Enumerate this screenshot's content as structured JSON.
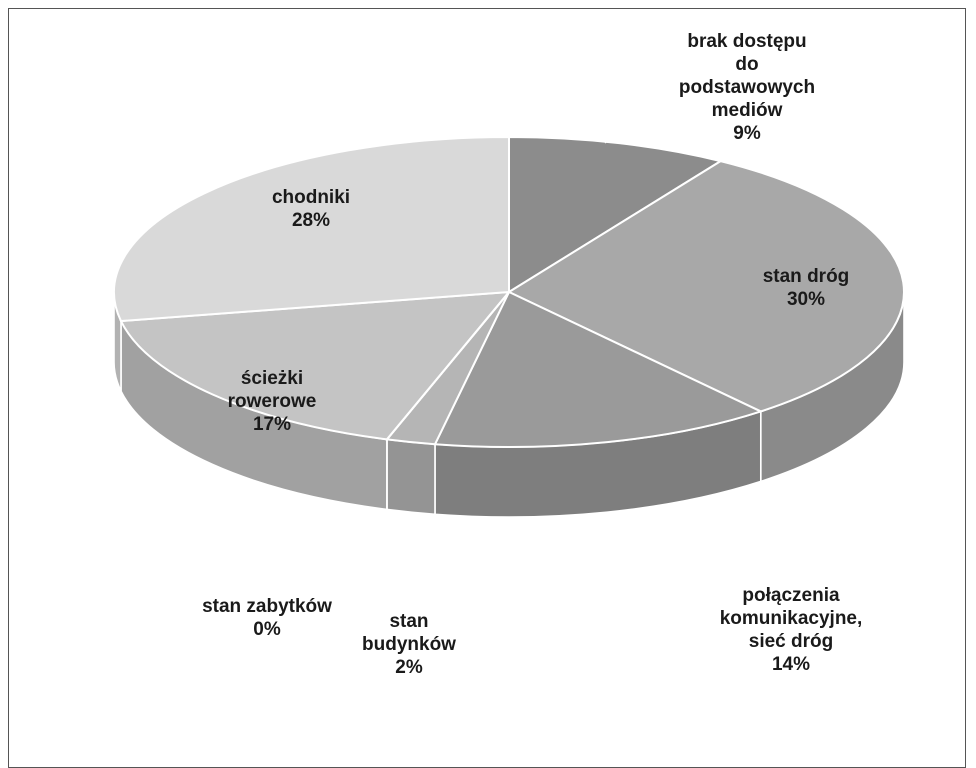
{
  "chart_data": {
    "type": "pie",
    "title": "",
    "three_d": true,
    "legend": "none",
    "slices": [
      {
        "name": "brak dostępu do podstawowych mediów",
        "label_lines": [
          "brak dostępu",
          "do",
          "podstawowych",
          "mediów"
        ],
        "percent_label": "9%",
        "value": 9,
        "color": "#8c8c8c"
      },
      {
        "name": "stan dróg",
        "label_lines": [
          "stan dróg"
        ],
        "percent_label": "30%",
        "value": 30,
        "color": "#a8a8a8"
      },
      {
        "name": "połączenia komunikacyjne, sieć dróg",
        "label_lines": [
          "połączenia",
          "komunikacyjne,",
          "sieć dróg"
        ],
        "percent_label": "14%",
        "value": 14,
        "color": "#9a9a9a"
      },
      {
        "name": "stan budynków",
        "label_lines": [
          "stan",
          "budynków"
        ],
        "percent_label": "2%",
        "value": 2,
        "color": "#b5b5b5"
      },
      {
        "name": "stan zabytków",
        "label_lines": [
          "stan zabytków"
        ],
        "percent_label": "0%",
        "value": 0,
        "color": "#c0c0c0"
      },
      {
        "name": "ścieżki rowerowe",
        "label_lines": [
          "ścieżki",
          "rowerowe"
        ],
        "percent_label": "17%",
        "value": 17,
        "color": "#c4c4c4"
      },
      {
        "name": "chodniki",
        "label_lines": [
          "chodniki"
        ],
        "percent_label": "28%",
        "value": 28,
        "color": "#d9d9d9"
      }
    ]
  }
}
